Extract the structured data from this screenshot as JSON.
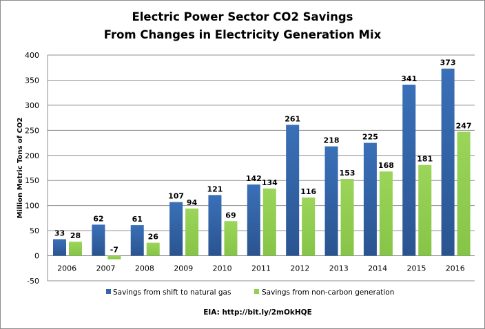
{
  "chart_data": {
    "type": "bar",
    "title": [
      "Electric Power Sector CO2 Savings",
      "From Changes in Electricity Generation Mix"
    ],
    "xlabel": "",
    "ylabel": "Million Metric Tons of CO2",
    "ylim": [
      -50,
      400
    ],
    "yticks": [
      -50,
      0,
      50,
      100,
      150,
      200,
      250,
      300,
      350,
      400
    ],
    "grid": true,
    "legend_position": "bottom",
    "categories": [
      "2006",
      "2007",
      "2008",
      "2009",
      "2010",
      "2011",
      "2012",
      "2013",
      "2014",
      "2015",
      "2016"
    ],
    "series": [
      {
        "name": "Savings from shift to natural gas",
        "color": "#3465a4",
        "values": [
          33,
          62,
          61,
          107,
          121,
          142,
          261,
          218,
          225,
          341,
          373
        ]
      },
      {
        "name": "Savings from non-carbon generation",
        "color": "#92d050",
        "values": [
          28,
          -7,
          26,
          94,
          69,
          134,
          116,
          153,
          168,
          181,
          247
        ]
      }
    ],
    "source": "EIA: http://bit.ly/2mOkHQE"
  }
}
